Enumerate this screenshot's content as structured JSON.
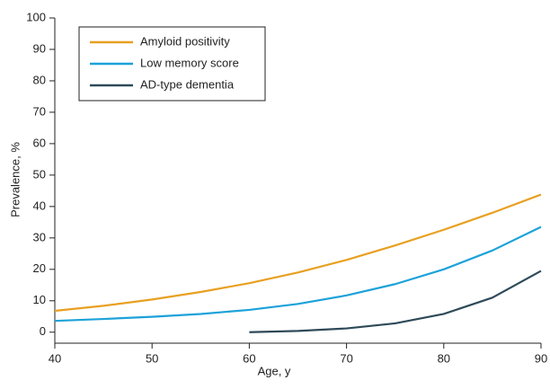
{
  "chart_data": {
    "type": "line",
    "xlabel": "Age, y",
    "ylabel": "Prevalence, %",
    "x": [
      40,
      45,
      50,
      55,
      60,
      65,
      70,
      75,
      80,
      85,
      90
    ],
    "series": [
      {
        "name": "Amyloid positivity",
        "color": "#e8a021",
        "values": [
          6.8,
          8.4,
          10.4,
          12.8,
          15.6,
          19,
          23,
          27.6,
          32.6,
          38,
          43.8
        ]
      },
      {
        "name": "Low memory score",
        "color": "#1ca2d9",
        "values": [
          3.6,
          4.2,
          4.9,
          5.8,
          7.1,
          9,
          11.7,
          15.3,
          20,
          26,
          33.5
        ]
      },
      {
        "name": "AD-type dementia",
        "color": "#2e4a58",
        "values": [
          null,
          null,
          null,
          null,
          0,
          0.4,
          1.2,
          2.8,
          5.8,
          11,
          19.5
        ]
      }
    ],
    "xlim": [
      40,
      90
    ],
    "xticks": [
      40,
      50,
      60,
      70,
      80,
      90
    ],
    "ylim": [
      -3.5,
      100
    ],
    "yticks": [
      0,
      10,
      20,
      30,
      40,
      50,
      60,
      70,
      80,
      90,
      100
    ],
    "legend": "upper left"
  }
}
